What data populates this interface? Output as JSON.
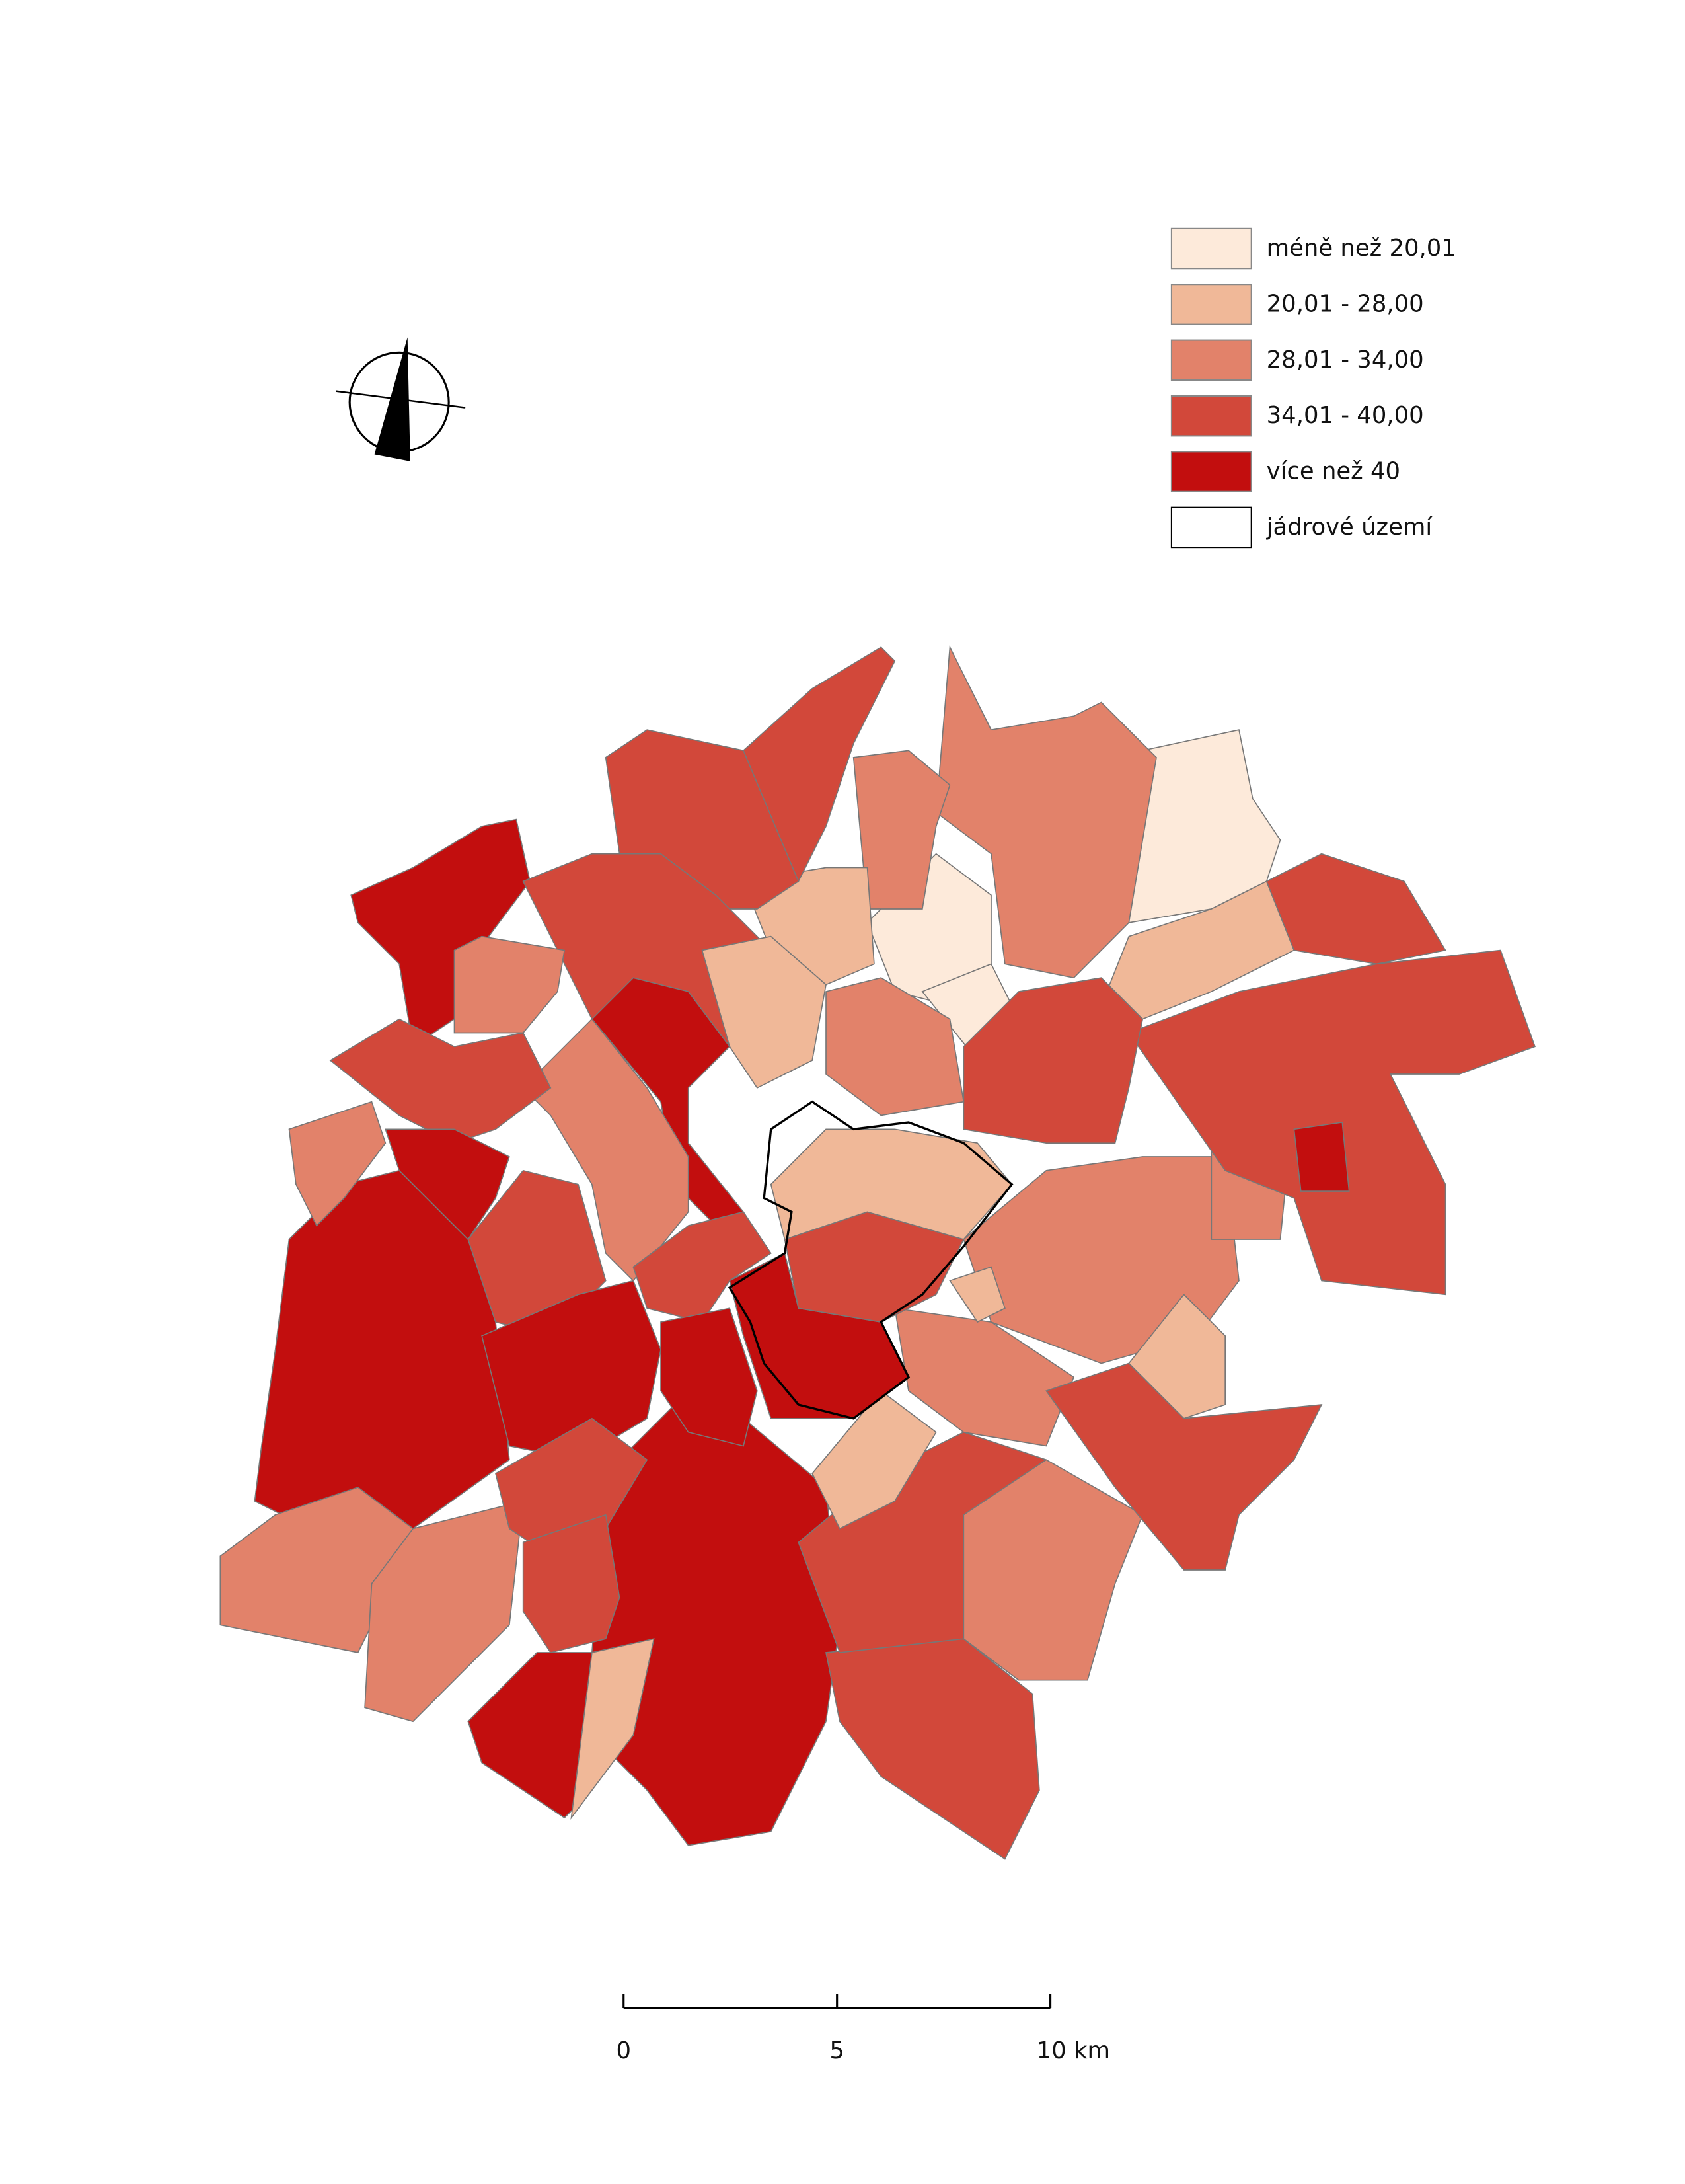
{
  "legend": {
    "items": [
      {
        "label": "méně než 20,01",
        "color": "#fdeada"
      },
      {
        "label": "20,01 - 28,00",
        "color": "#f0b898"
      },
      {
        "label": "28,01 - 34,00",
        "color": "#e2826a"
      },
      {
        "label": "34,01 - 40,00",
        "color": "#d2483a"
      },
      {
        "label": "více než 40",
        "color": "#c20e0e"
      },
      {
        "label": "jádrové území",
        "color": "#ffffff"
      }
    ]
  },
  "scale_bar": {
    "labels": [
      "0",
      "5",
      "10 km"
    ]
  }
}
